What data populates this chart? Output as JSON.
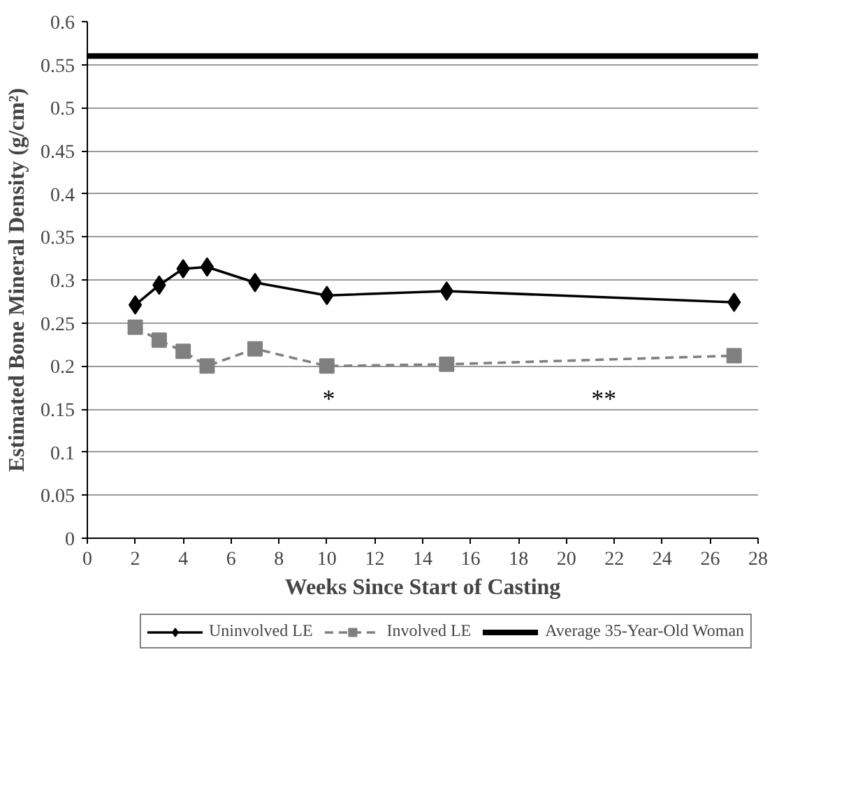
{
  "chart_data": {
    "type": "line",
    "xlabel": "Weeks Since Start of Casting",
    "ylabel": "Estimated Bone Mineral Density (g/cm²)",
    "xlim": [
      0,
      28
    ],
    "xticks": [
      0,
      2,
      4,
      6,
      8,
      10,
      12,
      14,
      16,
      18,
      20,
      22,
      24,
      26,
      28
    ],
    "ylim": [
      0,
      0.6
    ],
    "yticks": [
      0,
      0.05,
      0.1,
      0.15,
      0.2,
      0.25,
      0.3,
      0.35,
      0.4,
      0.45,
      0.5,
      0.55,
      0.6
    ],
    "grid": "y",
    "legend": "bottom",
    "series": [
      {
        "name": "Uninvolved LE",
        "color": "#000000",
        "marker": "diamond",
        "line_style": "solid",
        "x": [
          2,
          3,
          4,
          5,
          7,
          10,
          15,
          27
        ],
        "values": [
          0.271,
          0.294,
          0.313,
          0.315,
          0.297,
          0.282,
          0.287,
          0.274
        ]
      },
      {
        "name": "Involved LE",
        "color": "#808080",
        "marker": "square",
        "line_style": "dashed",
        "x": [
          2,
          3,
          4,
          5,
          7,
          10,
          15,
          27
        ],
        "values": [
          0.245,
          0.23,
          0.217,
          0.2,
          0.22,
          0.2,
          0.202,
          0.212
        ]
      },
      {
        "name": "Average 35-Year-Old Woman",
        "color": "#000000",
        "marker": "none",
        "line_style": "solid",
        "x": [
          0,
          28
        ],
        "values": [
          0.56,
          0.56
        ]
      }
    ],
    "annotations": [
      "*",
      "**"
    ]
  }
}
